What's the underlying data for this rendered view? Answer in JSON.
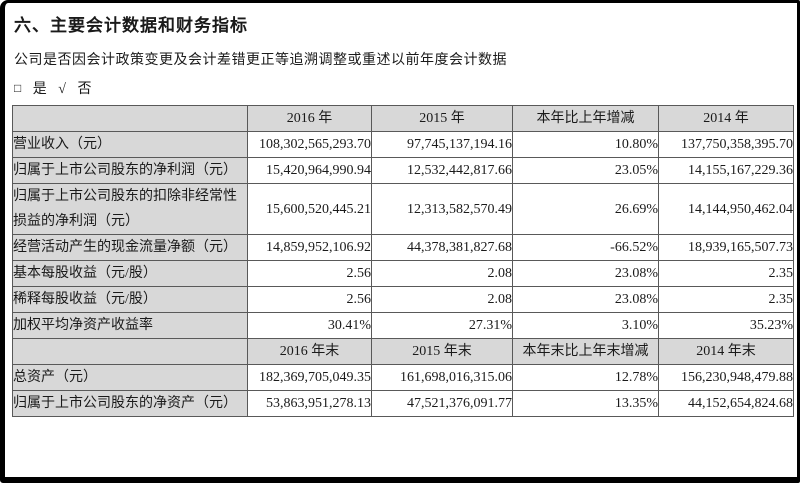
{
  "colors": {
    "frame": "#000000",
    "grid": "#595959",
    "shade": "#d8d8d8",
    "text": "#1a1a1a"
  },
  "page": {
    "title": "六、主要会计数据和财务指标",
    "restatement_question": "公司是否因会计政策变更及会计差错更正等追溯调整或重述以前年度会计数据",
    "answer": {
      "box_symbol": "□",
      "yes_label": "是",
      "check_symbol": "√",
      "no_label": "否"
    }
  },
  "table": {
    "annual_header": [
      "2016 年",
      "2015 年",
      "本年比上年增减",
      "2014 年"
    ],
    "annual_rows": [
      {
        "label": "营业收入（元）",
        "values": [
          "108,302,565,293.70",
          "97,745,137,194.16",
          "10.80%",
          "137,750,358,395.70"
        ]
      },
      {
        "label": "归属于上市公司股东的净利润（元）",
        "values": [
          "15,420,964,990.94",
          "12,532,442,817.66",
          "23.05%",
          "14,155,167,229.36"
        ]
      },
      {
        "label": "归属于上市公司股东的扣除非经常性损益的净利润（元）",
        "values": [
          "15,600,520,445.21",
          "12,313,582,570.49",
          "26.69%",
          "14,144,950,462.04"
        ]
      },
      {
        "label": "经营活动产生的现金流量净额（元）",
        "values": [
          "14,859,952,106.92",
          "44,378,381,827.68",
          "-66.52%",
          "18,939,165,507.73"
        ]
      },
      {
        "label": "基本每股收益（元/股）",
        "values": [
          "2.56",
          "2.08",
          "23.08%",
          "2.35"
        ]
      },
      {
        "label": "稀释每股收益（元/股）",
        "values": [
          "2.56",
          "2.08",
          "23.08%",
          "2.35"
        ]
      },
      {
        "label": "加权平均净资产收益率",
        "values": [
          "30.41%",
          "27.31%",
          "3.10%",
          "35.23%"
        ]
      }
    ],
    "period_header": [
      "2016 年末",
      "2015 年末",
      "本年末比上年末增减",
      "2014 年末"
    ],
    "period_rows": [
      {
        "label": "总资产（元）",
        "values": [
          "182,369,705,049.35",
          "161,698,016,315.06",
          "12.78%",
          "156,230,948,479.88"
        ]
      },
      {
        "label": "归属于上市公司股东的净资产（元）",
        "values": [
          "53,863,951,278.13",
          "47,521,376,091.77",
          "13.35%",
          "44,152,654,824.68"
        ]
      }
    ]
  }
}
